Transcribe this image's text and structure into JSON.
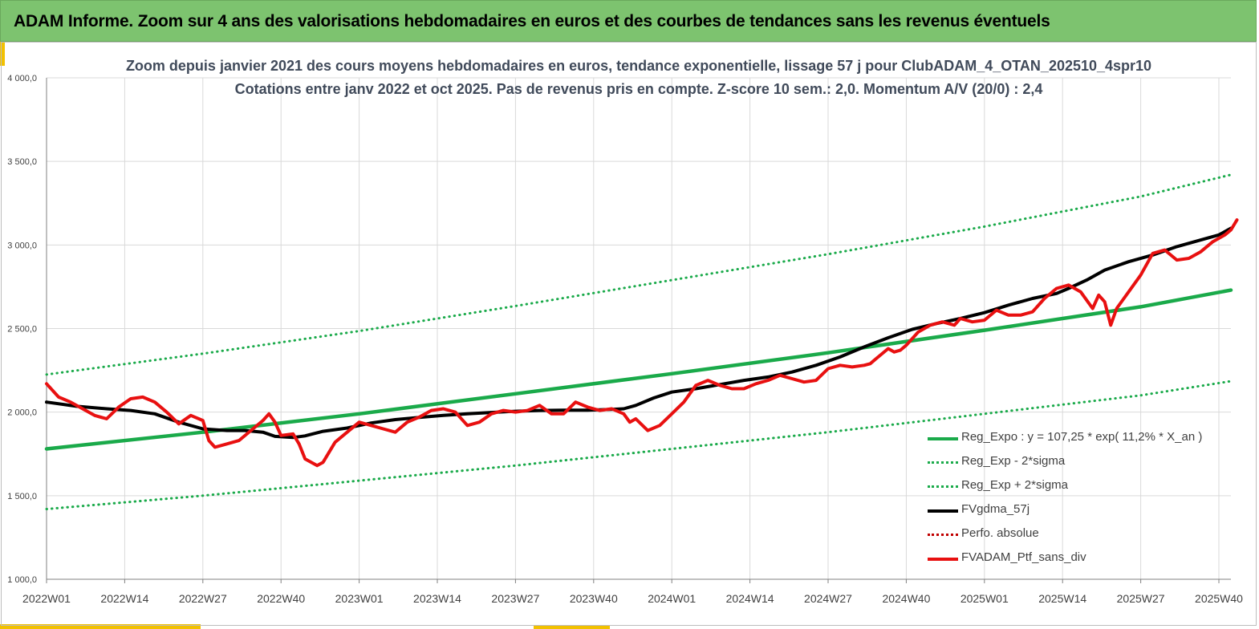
{
  "banner": {
    "title": "ADAM Informe. Zoom sur 4 ans des valorisations hebdomadaires en euros et des courbes de tendances sans les revenus éventuels"
  },
  "colors": {
    "banner": "#7dc36f",
    "accent": "#f2c100",
    "trend": "#1aaa4a",
    "gdma": "#000000",
    "ptf": "#e81010",
    "perfo": "#c00000"
  },
  "chart_data": {
    "type": "line",
    "title": "Zoom depuis janvier 2021 des cours moyens hebdomadaires en euros, tendance exponentielle, lissage 57 j pour ClubADAM_4_OTAN_202510_4spr10",
    "subtitle": "Cotations entre janv 2022 et oct 2025. Pas de revenus pris en compte. Z-score 10 sem.: 2,0. Momentum A/V (20/0) : 2,4",
    "xlabel": "",
    "ylabel": "",
    "ylim": [
      1000,
      4000
    ],
    "xlim": [
      0,
      197
    ],
    "grid": true,
    "legend_position": "bottom-right",
    "y_ticks": [
      {
        "value": 1000,
        "label": "1 000,0"
      },
      {
        "value": 1500,
        "label": "1 500,0"
      },
      {
        "value": 2000,
        "label": "2 000,0"
      },
      {
        "value": 2500,
        "label": "2 500,0"
      },
      {
        "value": 3000,
        "label": "3 000,0"
      },
      {
        "value": 3500,
        "label": "3 500,0"
      },
      {
        "value": 4000,
        "label": "4 000,0"
      }
    ],
    "x_ticks": [
      {
        "index": 0,
        "label": "2022W01"
      },
      {
        "index": 13,
        "label": "2022W14"
      },
      {
        "index": 26,
        "label": "2022W27"
      },
      {
        "index": 39,
        "label": "2022W40"
      },
      {
        "index": 52,
        "label": "2023W01"
      },
      {
        "index": 65,
        "label": "2023W14"
      },
      {
        "index": 78,
        "label": "2023W27"
      },
      {
        "index": 91,
        "label": "2023W40"
      },
      {
        "index": 104,
        "label": "2024W01"
      },
      {
        "index": 117,
        "label": "2024W14"
      },
      {
        "index": 130,
        "label": "2024W27"
      },
      {
        "index": 143,
        "label": "2024W40"
      },
      {
        "index": 156,
        "label": "2025W01"
      },
      {
        "index": 169,
        "label": "2025W14"
      },
      {
        "index": 182,
        "label": "2025W27"
      },
      {
        "index": 195,
        "label": "2025W40"
      }
    ],
    "series": [
      {
        "name": "Reg_Expo : y = 107,25 * exp( 11,2% *  X_an )",
        "style": "solid",
        "color": "#1aaa4a",
        "points": [
          [
            0,
            1780
          ],
          [
            26,
            1880
          ],
          [
            52,
            1990
          ],
          [
            78,
            2110
          ],
          [
            104,
            2230
          ],
          [
            130,
            2355
          ],
          [
            156,
            2490
          ],
          [
            182,
            2630
          ],
          [
            197,
            2730
          ]
        ]
      },
      {
        "name": "Reg_Exp - 2*sigma",
        "style": "dotted",
        "color": "#1aaa4a",
        "points": [
          [
            0,
            1420
          ],
          [
            26,
            1500
          ],
          [
            52,
            1590
          ],
          [
            78,
            1680
          ],
          [
            104,
            1780
          ],
          [
            130,
            1880
          ],
          [
            156,
            1990
          ],
          [
            182,
            2100
          ],
          [
            197,
            2185
          ]
        ]
      },
      {
        "name": "Reg_Exp + 2*sigma",
        "style": "dotted",
        "color": "#1aaa4a",
        "points": [
          [
            0,
            2225
          ],
          [
            26,
            2350
          ],
          [
            52,
            2485
          ],
          [
            78,
            2635
          ],
          [
            104,
            2790
          ],
          [
            130,
            2945
          ],
          [
            156,
            3110
          ],
          [
            182,
            3290
          ],
          [
            197,
            3420
          ]
        ]
      },
      {
        "name": "FVgdma_57j",
        "style": "solid",
        "color": "#000000",
        "points": [
          [
            0,
            2060
          ],
          [
            5,
            2035
          ],
          [
            10,
            2020
          ],
          [
            14,
            2010
          ],
          [
            18,
            1990
          ],
          [
            22,
            1940
          ],
          [
            26,
            1900
          ],
          [
            30,
            1890
          ],
          [
            33,
            1890
          ],
          [
            36,
            1880
          ],
          [
            38,
            1855
          ],
          [
            41,
            1848
          ],
          [
            43,
            1858
          ],
          [
            46,
            1885
          ],
          [
            50,
            1905
          ],
          [
            54,
            1935
          ],
          [
            58,
            1955
          ],
          [
            62,
            1968
          ],
          [
            66,
            1980
          ],
          [
            70,
            1990
          ],
          [
            74,
            1998
          ],
          [
            78,
            2005
          ],
          [
            82,
            2010
          ],
          [
            86,
            2012
          ],
          [
            90,
            2012
          ],
          [
            94,
            2016
          ],
          [
            96,
            2020
          ],
          [
            98,
            2040
          ],
          [
            101,
            2085
          ],
          [
            104,
            2120
          ],
          [
            108,
            2140
          ],
          [
            112,
            2165
          ],
          [
            116,
            2190
          ],
          [
            120,
            2210
          ],
          [
            124,
            2240
          ],
          [
            128,
            2280
          ],
          [
            132,
            2330
          ],
          [
            136,
            2390
          ],
          [
            140,
            2445
          ],
          [
            144,
            2495
          ],
          [
            148,
            2530
          ],
          [
            152,
            2560
          ],
          [
            156,
            2595
          ],
          [
            160,
            2640
          ],
          [
            164,
            2680
          ],
          [
            168,
            2710
          ],
          [
            170,
            2740
          ],
          [
            173,
            2790
          ],
          [
            176,
            2850
          ],
          [
            180,
            2900
          ],
          [
            184,
            2940
          ],
          [
            188,
            2990
          ],
          [
            192,
            3030
          ],
          [
            195,
            3060
          ],
          [
            197,
            3100
          ]
        ]
      },
      {
        "name": "Perfo. absolue",
        "style": "dotted",
        "color": "#c00000",
        "points": []
      },
      {
        "name": "FVADAM_Ptf_sans_div",
        "style": "solid",
        "color": "#e81010",
        "points": [
          [
            0,
            2170
          ],
          [
            2,
            2090
          ],
          [
            4,
            2060
          ],
          [
            6,
            2020
          ],
          [
            8,
            1980
          ],
          [
            10,
            1960
          ],
          [
            12,
            2030
          ],
          [
            14,
            2080
          ],
          [
            16,
            2090
          ],
          [
            18,
            2060
          ],
          [
            20,
            2000
          ],
          [
            22,
            1930
          ],
          [
            24,
            1980
          ],
          [
            26,
            1950
          ],
          [
            27,
            1830
          ],
          [
            28,
            1790
          ],
          [
            30,
            1810
          ],
          [
            32,
            1830
          ],
          [
            34,
            1890
          ],
          [
            36,
            1950
          ],
          [
            37,
            1990
          ],
          [
            38,
            1940
          ],
          [
            39,
            1860
          ],
          [
            41,
            1870
          ],
          [
            42,
            1810
          ],
          [
            43,
            1720
          ],
          [
            45,
            1680
          ],
          [
            46,
            1700
          ],
          [
            48,
            1820
          ],
          [
            50,
            1880
          ],
          [
            52,
            1940
          ],
          [
            54,
            1920
          ],
          [
            56,
            1900
          ],
          [
            58,
            1880
          ],
          [
            60,
            1940
          ],
          [
            62,
            1970
          ],
          [
            64,
            2010
          ],
          [
            66,
            2020
          ],
          [
            68,
            2000
          ],
          [
            70,
            1920
          ],
          [
            72,
            1940
          ],
          [
            74,
            1990
          ],
          [
            76,
            2010
          ],
          [
            78,
            2000
          ],
          [
            80,
            2010
          ],
          [
            82,
            2040
          ],
          [
            84,
            1990
          ],
          [
            86,
            1990
          ],
          [
            88,
            2060
          ],
          [
            90,
            2030
          ],
          [
            92,
            2010
          ],
          [
            94,
            2020
          ],
          [
            96,
            1990
          ],
          [
            97,
            1940
          ],
          [
            98,
            1960
          ],
          [
            100,
            1890
          ],
          [
            102,
            1920
          ],
          [
            104,
            1990
          ],
          [
            106,
            2060
          ],
          [
            108,
            2160
          ],
          [
            110,
            2190
          ],
          [
            112,
            2160
          ],
          [
            114,
            2140
          ],
          [
            116,
            2140
          ],
          [
            118,
            2170
          ],
          [
            120,
            2190
          ],
          [
            122,
            2220
          ],
          [
            124,
            2200
          ],
          [
            126,
            2180
          ],
          [
            128,
            2190
          ],
          [
            130,
            2260
          ],
          [
            132,
            2280
          ],
          [
            134,
            2270
          ],
          [
            136,
            2280
          ],
          [
            137,
            2290
          ],
          [
            138,
            2320
          ],
          [
            140,
            2380
          ],
          [
            141,
            2360
          ],
          [
            142,
            2370
          ],
          [
            143,
            2400
          ],
          [
            145,
            2480
          ],
          [
            147,
            2520
          ],
          [
            149,
            2540
          ],
          [
            151,
            2520
          ],
          [
            152,
            2560
          ],
          [
            154,
            2540
          ],
          [
            156,
            2550
          ],
          [
            158,
            2610
          ],
          [
            160,
            2580
          ],
          [
            162,
            2580
          ],
          [
            164,
            2600
          ],
          [
            166,
            2680
          ],
          [
            168,
            2740
          ],
          [
            170,
            2760
          ],
          [
            172,
            2720
          ],
          [
            174,
            2620
          ],
          [
            175,
            2700
          ],
          [
            176,
            2660
          ],
          [
            177,
            2520
          ],
          [
            178,
            2620
          ],
          [
            180,
            2720
          ],
          [
            182,
            2820
          ],
          [
            184,
            2950
          ],
          [
            186,
            2970
          ],
          [
            188,
            2910
          ],
          [
            190,
            2920
          ],
          [
            192,
            2960
          ],
          [
            194,
            3020
          ],
          [
            195,
            3040
          ],
          [
            196,
            3060
          ],
          [
            197,
            3090
          ],
          [
            198,
            3150
          ]
        ]
      }
    ]
  }
}
